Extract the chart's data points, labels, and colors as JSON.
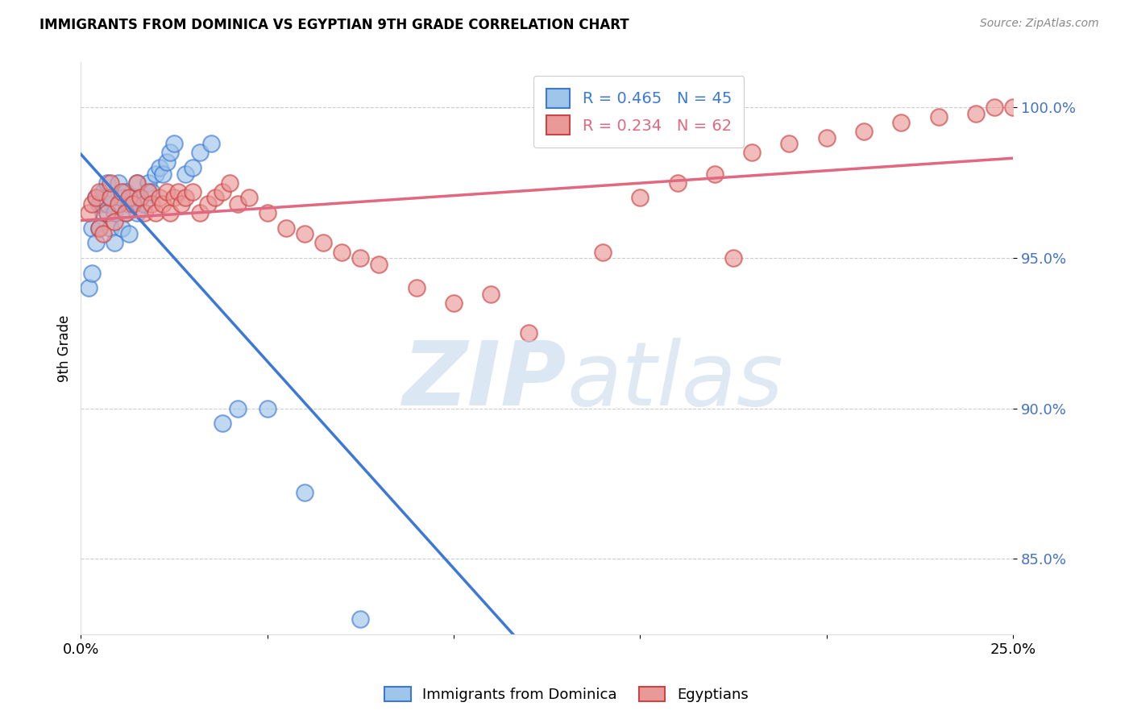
{
  "title": "IMMIGRANTS FROM DOMINICA VS EGYPTIAN 9TH GRADE CORRELATION CHART",
  "source": "Source: ZipAtlas.com",
  "ylabel": "9th Grade",
  "y_ticks": [
    0.85,
    0.9,
    0.95,
    1.0
  ],
  "y_tick_labels": [
    "85.0%",
    "90.0%",
    "95.0%",
    "100.0%"
  ],
  "x_range": [
    0.0,
    0.25
  ],
  "y_range": [
    0.825,
    1.015
  ],
  "blue_color": "#9fc5e8",
  "pink_color": "#ea9999",
  "blue_line_color": "#3c78d8",
  "pink_line_color": "#cc4125",
  "blue_R": 0.465,
  "blue_N": 45,
  "pink_R": 0.234,
  "pink_N": 62,
  "blue_scatter_x": [
    0.002,
    0.003,
    0.003,
    0.004,
    0.004,
    0.005,
    0.005,
    0.006,
    0.006,
    0.007,
    0.007,
    0.008,
    0.008,
    0.009,
    0.009,
    0.01,
    0.01,
    0.011,
    0.011,
    0.012,
    0.012,
    0.013,
    0.013,
    0.014,
    0.015,
    0.015,
    0.016,
    0.017,
    0.018,
    0.019,
    0.02,
    0.021,
    0.022,
    0.023,
    0.024,
    0.025,
    0.028,
    0.03,
    0.032,
    0.035,
    0.038,
    0.042,
    0.05,
    0.06,
    0.075
  ],
  "blue_scatter_y": [
    0.94,
    0.945,
    0.96,
    0.955,
    0.97,
    0.96,
    0.968,
    0.972,
    0.965,
    0.975,
    0.968,
    0.96,
    0.97,
    0.955,
    0.965,
    0.968,
    0.975,
    0.96,
    0.97,
    0.965,
    0.972,
    0.958,
    0.968,
    0.97,
    0.965,
    0.975,
    0.97,
    0.968,
    0.975,
    0.972,
    0.978,
    0.98,
    0.978,
    0.982,
    0.985,
    0.988,
    0.978,
    0.98,
    0.985,
    0.988,
    0.895,
    0.9,
    0.9,
    0.872,
    0.83
  ],
  "pink_scatter_x": [
    0.002,
    0.003,
    0.004,
    0.005,
    0.005,
    0.006,
    0.007,
    0.008,
    0.008,
    0.009,
    0.01,
    0.011,
    0.012,
    0.013,
    0.014,
    0.015,
    0.016,
    0.017,
    0.018,
    0.019,
    0.02,
    0.021,
    0.022,
    0.023,
    0.024,
    0.025,
    0.026,
    0.027,
    0.028,
    0.03,
    0.032,
    0.034,
    0.036,
    0.038,
    0.04,
    0.042,
    0.045,
    0.05,
    0.055,
    0.06,
    0.065,
    0.07,
    0.075,
    0.08,
    0.09,
    0.1,
    0.11,
    0.12,
    0.14,
    0.15,
    0.16,
    0.17,
    0.18,
    0.19,
    0.2,
    0.21,
    0.22,
    0.23,
    0.24,
    0.245,
    0.25,
    0.175
  ],
  "pink_scatter_y": [
    0.965,
    0.968,
    0.97,
    0.96,
    0.972,
    0.958,
    0.965,
    0.97,
    0.975,
    0.962,
    0.968,
    0.972,
    0.965,
    0.97,
    0.968,
    0.975,
    0.97,
    0.965,
    0.972,
    0.968,
    0.965,
    0.97,
    0.968,
    0.972,
    0.965,
    0.97,
    0.972,
    0.968,
    0.97,
    0.972,
    0.965,
    0.968,
    0.97,
    0.972,
    0.975,
    0.968,
    0.97,
    0.965,
    0.96,
    0.958,
    0.955,
    0.952,
    0.95,
    0.948,
    0.94,
    0.935,
    0.938,
    0.925,
    0.952,
    0.97,
    0.975,
    0.978,
    0.985,
    0.988,
    0.99,
    0.992,
    0.995,
    0.997,
    0.998,
    1.0,
    1.0,
    0.95
  ]
}
